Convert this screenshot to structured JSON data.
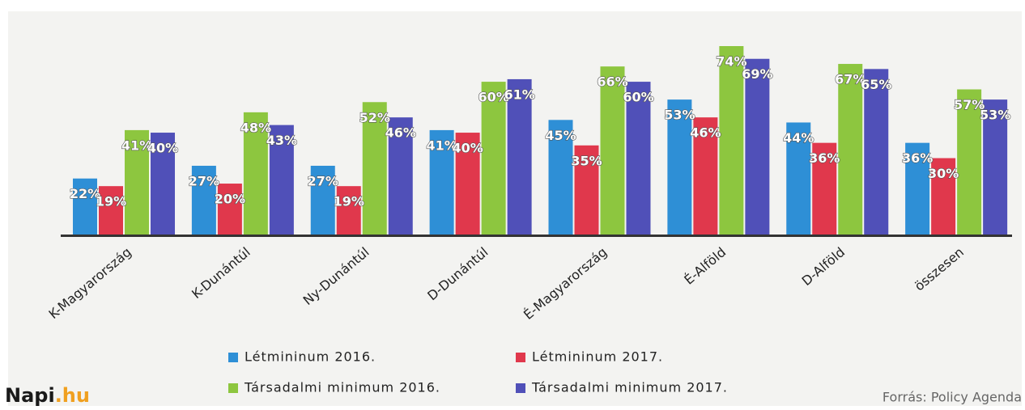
{
  "chart_data": {
    "type": "bar",
    "categories": [
      "K-Magyarország",
      "K-Dunántúl",
      "Ny-Dunántúl",
      "D-Dunántúl",
      "É-Magyarország",
      "É-Alföld",
      "D-Alföld",
      "összesen"
    ],
    "series": [
      {
        "name": "Létmininum 2016.",
        "color": "#2e8fd6",
        "values": [
          22,
          27,
          27,
          41,
          45,
          53,
          44,
          36
        ],
        "value_labels": [
          "22%",
          "27%",
          "27%",
          "41%",
          "45%",
          "53%",
          "44%",
          "36%"
        ]
      },
      {
        "name": "Létmininum 2017.",
        "color": "#e0384c",
        "values": [
          19,
          20,
          19,
          40,
          35,
          46,
          36,
          30
        ],
        "value_labels": [
          "19%",
          "20%",
          "19%",
          "40%",
          "35%",
          "46%",
          "36%",
          "30%"
        ]
      },
      {
        "name": "Társadalmi minimum 2016.",
        "color": "#8dc63f",
        "values": [
          41,
          48,
          52,
          60,
          66,
          74,
          67,
          57
        ],
        "value_labels": [
          "41%",
          "48%",
          "52%",
          "60%",
          "66%",
          "74%",
          "67%",
          "57%"
        ]
      },
      {
        "name": "Társadalmi minimum 2017.",
        "color": "#5050b8",
        "values": [
          40,
          43,
          46,
          61,
          60,
          69,
          65,
          53
        ],
        "value_labels": [
          "40%",
          "43%",
          "46%",
          "61%",
          "60%",
          "69%",
          "65%",
          "53%"
        ]
      }
    ],
    "logo": {
      "text": "Napi",
      "suffix": ".hu"
    },
    "source": "Forrás: Policy Agenda"
  }
}
